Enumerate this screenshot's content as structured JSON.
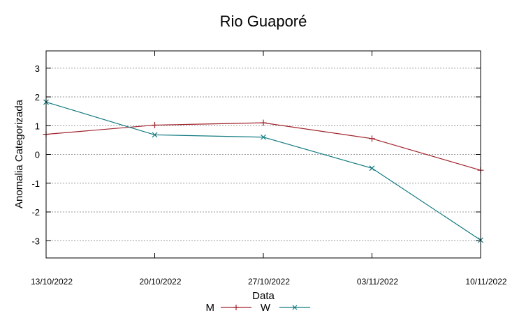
{
  "chart_data": {
    "type": "line",
    "title": "Rio Guaporé",
    "xlabel": "Data",
    "ylabel": "Anomalia Categorizada",
    "categories": [
      "13/10/2022",
      "20/10/2022",
      "27/10/2022",
      "03/11/2022",
      "10/11/2022"
    ],
    "ylim": [
      -3.6,
      3.6
    ],
    "yticks": [
      "3",
      "2",
      "1",
      "0",
      "-1",
      "-2",
      "-3"
    ],
    "grid": "horizontal dotted",
    "legend_position": "bottom",
    "series": [
      {
        "name": "M",
        "color": "#a0222c",
        "marker": "plus",
        "values": [
          0.7,
          1.02,
          1.1,
          0.55,
          -0.55
        ]
      },
      {
        "name": "W",
        "color": "#137b80",
        "marker": "cross",
        "values": [
          1.82,
          0.68,
          0.6,
          -0.48,
          -2.98
        ]
      }
    ]
  }
}
